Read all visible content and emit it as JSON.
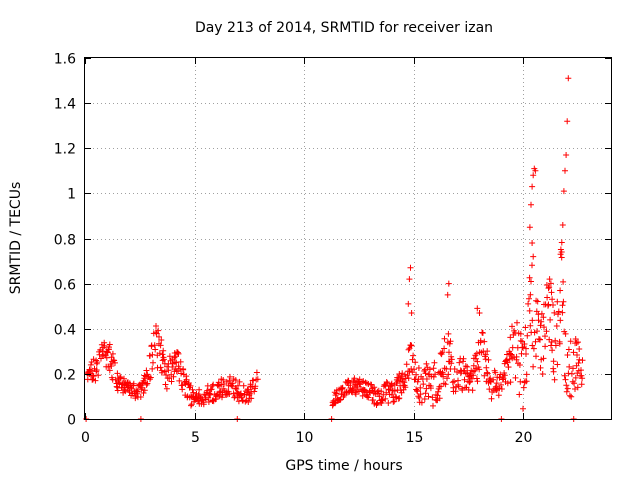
{
  "chart_data": {
    "type": "scatter",
    "title": "Day 213 of 2014, SRMTID for receiver izan",
    "xlabel": "GPS time / hours",
    "ylabel": "SRMTID / TECUs",
    "xlim": [
      0,
      24
    ],
    "ylim": [
      0,
      1.6
    ],
    "x_ticks": [
      0,
      5,
      10,
      15,
      20
    ],
    "x_tick_labels": [
      "0",
      "5",
      "10",
      "15",
      "20"
    ],
    "y_ticks": [
      0,
      0.2,
      0.4,
      0.6,
      0.8,
      1.0,
      1.2,
      1.4,
      1.6
    ],
    "y_tick_labels": [
      "0",
      "0.2",
      "0.4",
      "0.6",
      "0.8",
      "1",
      "1.2",
      "1.4",
      "1.6"
    ],
    "grid": true,
    "marker": "plus",
    "marker_color": "#ff0000",
    "zero_points_x": [
      0.05,
      2.55,
      6.95,
      11.25,
      19.0,
      22.3
    ],
    "segments": [
      {
        "x_start": 0.1,
        "x_end": 7.9,
        "step": 0.0334,
        "base": [
          [
            0.1,
            0.2
          ],
          [
            0.5,
            0.22
          ],
          [
            0.8,
            0.28
          ],
          [
            1.0,
            0.3
          ],
          [
            1.15,
            0.28
          ],
          [
            1.5,
            0.15
          ],
          [
            2.0,
            0.14
          ],
          [
            2.4,
            0.12
          ],
          [
            2.6,
            0.13
          ],
          [
            2.9,
            0.2
          ],
          [
            3.2,
            0.32
          ],
          [
            3.45,
            0.3
          ],
          [
            3.7,
            0.18
          ],
          [
            4.0,
            0.24
          ],
          [
            4.3,
            0.23
          ],
          [
            4.6,
            0.14
          ],
          [
            5.0,
            0.08
          ],
          [
            5.5,
            0.11
          ],
          [
            6.0,
            0.12
          ],
          [
            6.5,
            0.15
          ],
          [
            7.0,
            0.12
          ],
          [
            7.5,
            0.12
          ],
          [
            7.9,
            0.2
          ]
        ],
        "spread": [
          [
            0.1,
            0.03
          ],
          [
            1.0,
            0.09
          ],
          [
            1.5,
            0.04
          ],
          [
            2.6,
            0.03
          ],
          [
            3.2,
            0.1
          ],
          [
            3.6,
            0.06
          ],
          [
            4.2,
            0.07
          ],
          [
            5.0,
            0.04
          ],
          [
            7.9,
            0.05
          ]
        ]
      },
      {
        "x_start": 11.3,
        "x_end": 22.7,
        "step": 0.0334,
        "base": [
          [
            11.3,
            0.08
          ],
          [
            11.8,
            0.13
          ],
          [
            12.2,
            0.15
          ],
          [
            12.6,
            0.14
          ],
          [
            13.0,
            0.12
          ],
          [
            13.4,
            0.1
          ],
          [
            13.8,
            0.12
          ],
          [
            14.2,
            0.13
          ],
          [
            14.6,
            0.17
          ],
          [
            14.9,
            0.3
          ],
          [
            15.1,
            0.18
          ],
          [
            15.4,
            0.14
          ],
          [
            15.7,
            0.18
          ],
          [
            16.0,
            0.14
          ],
          [
            16.3,
            0.24
          ],
          [
            16.6,
            0.27
          ],
          [
            16.9,
            0.19
          ],
          [
            17.2,
            0.2
          ],
          [
            17.6,
            0.17
          ],
          [
            17.9,
            0.24
          ],
          [
            18.1,
            0.3
          ],
          [
            18.3,
            0.25
          ],
          [
            18.6,
            0.15
          ],
          [
            18.9,
            0.14
          ],
          [
            19.2,
            0.18
          ],
          [
            19.5,
            0.3
          ],
          [
            19.8,
            0.26
          ],
          [
            20.0,
            0.18
          ],
          [
            20.3,
            0.6
          ],
          [
            20.5,
            0.35
          ],
          [
            20.8,
            0.3
          ],
          [
            21.0,
            0.45
          ],
          [
            21.2,
            0.5
          ],
          [
            21.5,
            0.28
          ],
          [
            21.75,
            0.6
          ],
          [
            21.9,
            0.35
          ],
          [
            22.1,
            0.22
          ],
          [
            22.4,
            0.25
          ],
          [
            22.7,
            0.22
          ]
        ],
        "spread": [
          [
            11.3,
            0.03
          ],
          [
            13.0,
            0.04
          ],
          [
            14.6,
            0.06
          ],
          [
            15.5,
            0.09
          ],
          [
            16.5,
            0.12
          ],
          [
            17.5,
            0.06
          ],
          [
            18.2,
            0.1
          ],
          [
            19.0,
            0.05
          ],
          [
            20.3,
            0.25
          ],
          [
            21.0,
            0.15
          ],
          [
            21.8,
            0.2
          ],
          [
            22.7,
            0.08
          ]
        ]
      }
    ],
    "highlight_points": [
      [
        14.75,
        0.51
      ],
      [
        14.8,
        0.62
      ],
      [
        14.85,
        0.67
      ],
      [
        14.9,
        0.47
      ],
      [
        16.6,
        0.6
      ],
      [
        16.55,
        0.55
      ],
      [
        17.9,
        0.49
      ],
      [
        18.0,
        0.47
      ],
      [
        20.3,
        0.85
      ],
      [
        20.35,
        0.95
      ],
      [
        20.4,
        1.03
      ],
      [
        20.45,
        1.08
      ],
      [
        20.5,
        1.11
      ],
      [
        20.55,
        1.1
      ],
      [
        20.4,
        0.78
      ],
      [
        20.45,
        0.72
      ],
      [
        21.2,
        0.62
      ],
      [
        21.15,
        0.58
      ],
      [
        21.7,
        0.73
      ],
      [
        21.75,
        0.74
      ],
      [
        21.8,
        0.86
      ],
      [
        21.85,
        1.01
      ],
      [
        21.9,
        1.1
      ],
      [
        21.95,
        1.17
      ],
      [
        22.0,
        1.32
      ],
      [
        22.05,
        1.51
      ]
    ]
  }
}
